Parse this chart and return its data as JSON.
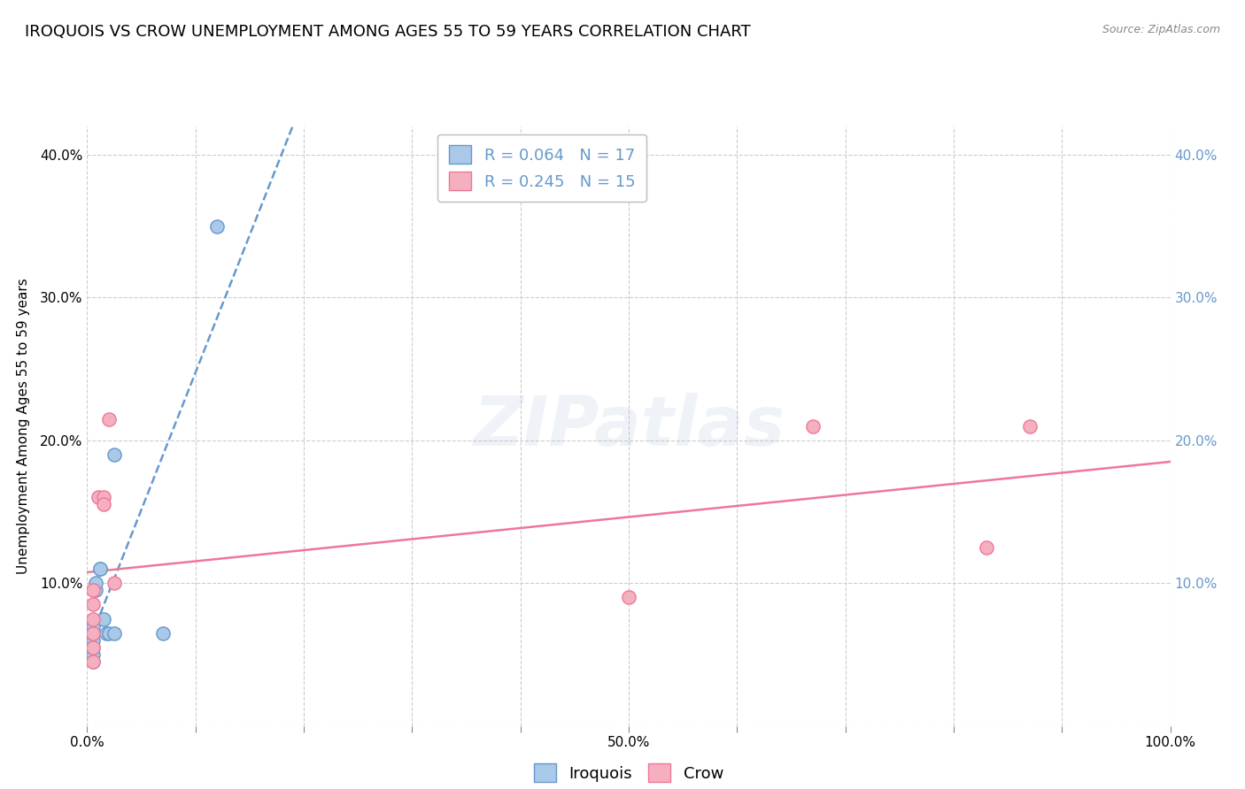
{
  "title": "IROQUOIS VS CROW UNEMPLOYMENT AMONG AGES 55 TO 59 YEARS CORRELATION CHART",
  "source": "Source: ZipAtlas.com",
  "ylabel": "Unemployment Among Ages 55 to 59 years",
  "xlim": [
    0.0,
    1.0
  ],
  "ylim": [
    0.0,
    0.42
  ],
  "xtick_vals": [
    0.0,
    0.1,
    0.2,
    0.3,
    0.4,
    0.5,
    0.6,
    0.7,
    0.8,
    0.9,
    1.0
  ],
  "xticklabels": [
    "0.0%",
    "",
    "",
    "",
    "",
    "50.0%",
    "",
    "",
    "",
    "",
    "100.0%"
  ],
  "ytick_vals": [
    0.0,
    0.1,
    0.2,
    0.3,
    0.4
  ],
  "yticklabels_left": [
    "",
    "10.0%",
    "20.0%",
    "30.0%",
    "40.0%"
  ],
  "yticklabels_right": [
    "",
    "10.0%",
    "20.0%",
    "30.0%",
    "40.0%"
  ],
  "iroquois_x": [
    0.005,
    0.005,
    0.005,
    0.005,
    0.005,
    0.005,
    0.008,
    0.008,
    0.012,
    0.012,
    0.015,
    0.018,
    0.02,
    0.025,
    0.025,
    0.07,
    0.12
  ],
  "iroquois_y": [
    0.045,
    0.05,
    0.055,
    0.06,
    0.065,
    0.07,
    0.095,
    0.1,
    0.11,
    0.11,
    0.075,
    0.065,
    0.065,
    0.065,
    0.19,
    0.065,
    0.35
  ],
  "crow_x": [
    0.005,
    0.005,
    0.005,
    0.005,
    0.005,
    0.005,
    0.01,
    0.015,
    0.015,
    0.02,
    0.025,
    0.5,
    0.67,
    0.83,
    0.87
  ],
  "crow_y": [
    0.045,
    0.055,
    0.065,
    0.075,
    0.085,
    0.095,
    0.16,
    0.16,
    0.155,
    0.215,
    0.1,
    0.09,
    0.21,
    0.125,
    0.21
  ],
  "iroquois_color": "#aac8e8",
  "crow_color": "#f5b0c0",
  "iroquois_edge_color": "#6699cc",
  "crow_edge_color": "#ee7799",
  "iroquois_line_color": "#6699cc",
  "crow_line_color": "#ee7799",
  "iroquois_R": "0.064",
  "iroquois_N": "17",
  "crow_R": "0.245",
  "crow_N": "15",
  "watermark": "ZIPatlas",
  "background_color": "#ffffff",
  "grid_color": "#cccccc",
  "title_fontsize": 13,
  "axis_label_fontsize": 11,
  "tick_fontsize": 11,
  "right_tick_color": "#6699cc",
  "marker_size": 120
}
